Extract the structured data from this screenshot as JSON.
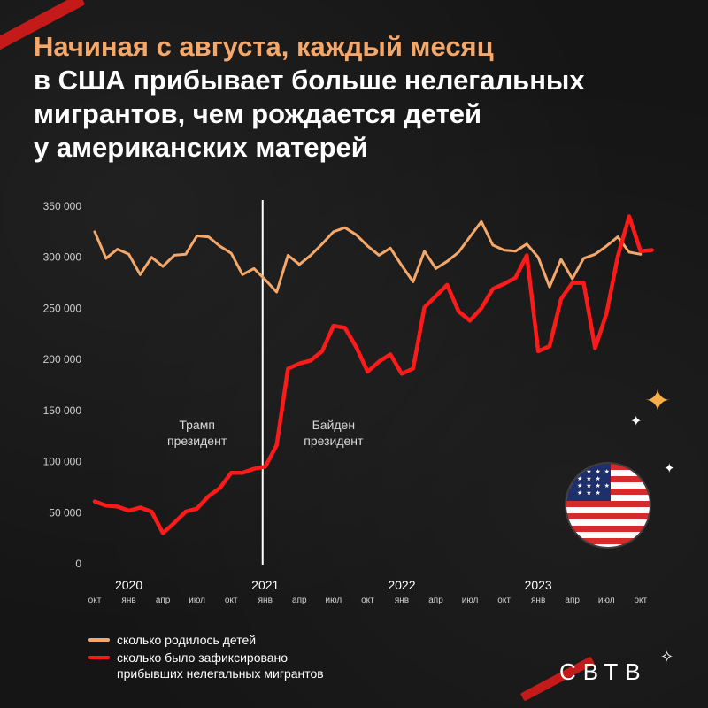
{
  "title": {
    "line1": "Начиная с августа, каждый месяц",
    "line2": "в США прибывает больше нелегальных",
    "line3": "мигрантов, чем рождается детей",
    "line4": "у американских матерей"
  },
  "logo": "СВТВ",
  "colors": {
    "births": "#f5a86a",
    "migrants": "#ff1a1a",
    "accent": "#f5a86a",
    "background": "#151515"
  },
  "icons": [
    "us-flag-icon",
    "sparkle-icon",
    "satellite-icon"
  ],
  "legend": {
    "births": "сколько родилось детей",
    "migrants": "сколько было зафиксировано\nприбывших нелегальных мигрантов"
  },
  "chart_data": {
    "type": "line",
    "title": "",
    "xlabel": "",
    "ylabel": "",
    "ylim": [
      0,
      350000
    ],
    "yticks": [
      "350 000",
      "300 000",
      "250 000",
      "200 000",
      "150 000",
      "100 000",
      "50 000",
      "0"
    ],
    "grid": false,
    "legend_position": "bottom-left",
    "month_ticks": [
      {
        "i": 0,
        "label": "окт"
      },
      {
        "i": 3,
        "label": "янв"
      },
      {
        "i": 6,
        "label": "апр"
      },
      {
        "i": 9,
        "label": "июл"
      },
      {
        "i": 12,
        "label": "окт"
      },
      {
        "i": 15,
        "label": "янв"
      },
      {
        "i": 18,
        "label": "апр"
      },
      {
        "i": 21,
        "label": "июл"
      },
      {
        "i": 24,
        "label": "окт"
      },
      {
        "i": 27,
        "label": "янв"
      },
      {
        "i": 30,
        "label": "апр"
      },
      {
        "i": 33,
        "label": "июл"
      },
      {
        "i": 36,
        "label": "окт"
      },
      {
        "i": 39,
        "label": "янв"
      },
      {
        "i": 42,
        "label": "апр"
      },
      {
        "i": 45,
        "label": "июл"
      },
      {
        "i": 48,
        "label": "окт"
      }
    ],
    "year_labels": [
      {
        "i": 3,
        "label": "2020"
      },
      {
        "i": 15,
        "label": "2021"
      },
      {
        "i": 27,
        "label": "2022"
      },
      {
        "i": 39,
        "label": "2023"
      }
    ],
    "annotations": [
      {
        "i": 9,
        "text": "Трамп\nпрезидент"
      },
      {
        "i": 21,
        "text": "Байден\nпрезидент"
      }
    ],
    "divider_at": 15,
    "series": [
      {
        "key": "births",
        "values": [
          325000,
          299000,
          308000,
          303000,
          283000,
          300000,
          291000,
          302000,
          303000,
          321000,
          320000,
          311000,
          304000,
          283000,
          289000,
          278000,
          266000,
          302000,
          293000,
          302000,
          313000,
          325000,
          329000,
          322000,
          311000,
          302000,
          309000,
          292000,
          276000,
          306000,
          289000,
          296000,
          305000,
          320000,
          335000,
          312000,
          307000,
          306000,
          313000,
          300000,
          271000,
          298000,
          279000,
          299000,
          303000,
          311000,
          320000,
          305000,
          303000
        ]
      },
      {
        "key": "migrants",
        "values": [
          61000,
          57000,
          56000,
          52000,
          55000,
          51000,
          30000,
          40000,
          51000,
          54000,
          66000,
          74000,
          89000,
          89000,
          93000,
          95000,
          116000,
          191000,
          196000,
          199000,
          208000,
          233000,
          231000,
          212000,
          188000,
          198000,
          205000,
          186000,
          191000,
          251000,
          262000,
          273000,
          247000,
          238000,
          250000,
          269000,
          274000,
          280000,
          302000,
          208000,
          213000,
          259000,
          275000,
          275000,
          211000,
          245000,
          301000,
          340000,
          306000,
          307000
        ]
      }
    ]
  }
}
